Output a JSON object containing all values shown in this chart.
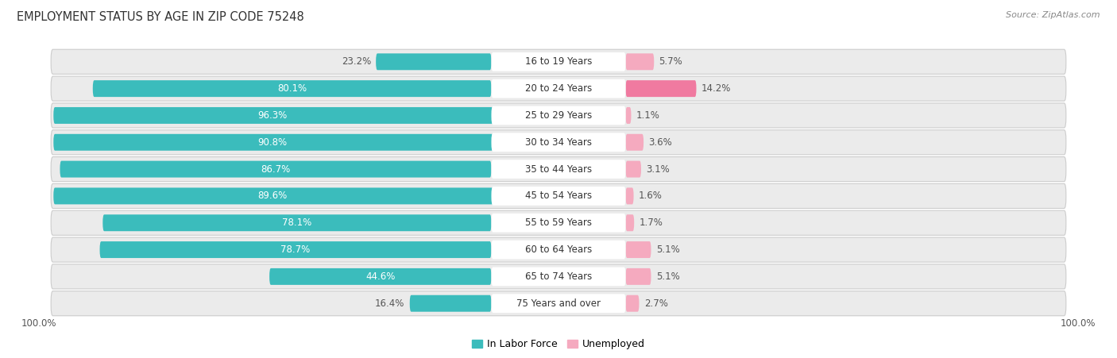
{
  "title": "EMPLOYMENT STATUS BY AGE IN ZIP CODE 75248",
  "source": "Source: ZipAtlas.com",
  "categories": [
    "16 to 19 Years",
    "20 to 24 Years",
    "25 to 29 Years",
    "30 to 34 Years",
    "35 to 44 Years",
    "45 to 54 Years",
    "55 to 59 Years",
    "60 to 64 Years",
    "65 to 74 Years",
    "75 Years and over"
  ],
  "labor_force": [
    23.2,
    80.1,
    96.3,
    90.8,
    86.7,
    89.6,
    78.1,
    78.7,
    44.6,
    16.4
  ],
  "unemployed": [
    5.7,
    14.2,
    1.1,
    3.6,
    3.1,
    1.6,
    1.7,
    5.1,
    5.1,
    2.7
  ],
  "labor_force_color": "#3BBCBC",
  "unemployed_color": "#F07AA0",
  "unemployed_light_color": "#F5AABF",
  "row_bg_color": "#EBEBEB",
  "row_border_color": "#CCCCCC",
  "cat_pill_color": "#FFFFFF",
  "title_fontsize": 10.5,
  "source_fontsize": 8,
  "label_fontsize": 8.5,
  "category_fontsize": 8.5,
  "legend_fontsize": 9,
  "axis_label_fontsize": 8.5,
  "x_axis_label_left": "100.0%",
  "x_axis_label_right": "100.0%"
}
